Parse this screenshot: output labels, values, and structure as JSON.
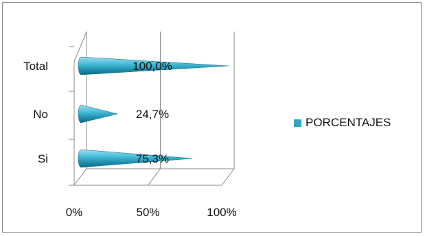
{
  "chart_data": {
    "type": "bar",
    "orientation": "horizontal",
    "shape": "cone-3d",
    "categories": [
      "Si",
      "No",
      "Total"
    ],
    "series": [
      {
        "name": "PORCENTAJES",
        "values": [
          0.753,
          0.247,
          1.0
        ],
        "color": "#2ea7c4"
      }
    ],
    "data_labels": [
      "75,3%",
      "24,7%",
      "100,0%"
    ],
    "xlim": [
      0,
      1
    ],
    "x_ticks": [
      "0%",
      "50%",
      "100%"
    ],
    "grid": true,
    "legend_position": "right"
  }
}
